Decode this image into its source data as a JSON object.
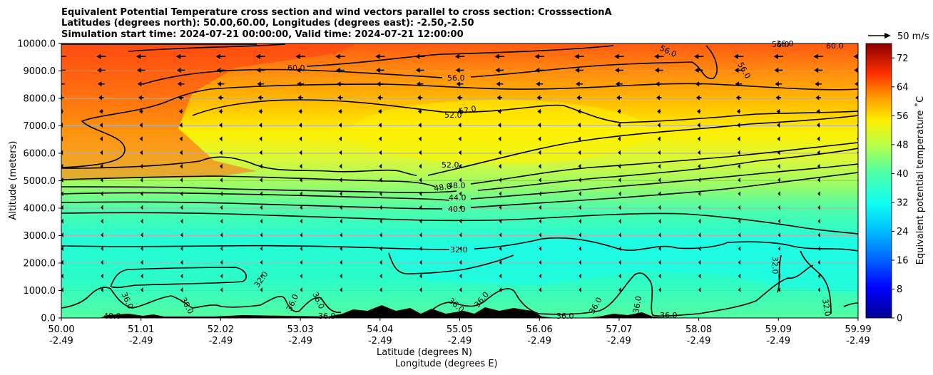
{
  "chart_data": {
    "type": "contour-cross-section",
    "title": [
      "Equivalent Potential Temperature cross section and wind vectors parallel to cross section: CrosssectionA",
      "Latitudes (degrees north): 50.00,60.00, Longitudes (degrees east): -2.50,-2.50",
      "Simulation start time: 2024-07-21 00:00:00, Valid time: 2024-07-21 12:00:00"
    ],
    "ylabel": "Altitude (meters)",
    "xlabel_lat": "Latitude (degrees N)",
    "xlabel_lon": "Longitude (degrees E)",
    "ylim": [
      0,
      10000
    ],
    "xlim": [
      50.0,
      59.99
    ],
    "y_ticks": [
      "0.0",
      "1000.0",
      "2000.0",
      "3000.0",
      "4000.0",
      "5000.0",
      "6000.0",
      "7000.0",
      "8000.0",
      "9000.0",
      "10000.0"
    ],
    "x_ticks": [
      {
        "lat": "50.00",
        "lon": "-2.49"
      },
      {
        "lat": "51.01",
        "lon": "-2.49"
      },
      {
        "lat": "52.02",
        "lon": "-2.49"
      },
      {
        "lat": "53.03",
        "lon": "-2.49"
      },
      {
        "lat": "54.04",
        "lon": "-2.49"
      },
      {
        "lat": "55.05",
        "lon": "-2.49"
      },
      {
        "lat": "56.06",
        "lon": "-2.49"
      },
      {
        "lat": "57.07",
        "lon": "-2.49"
      },
      {
        "lat": "58.08",
        "lon": "-2.49"
      },
      {
        "lat": "59.09",
        "lon": "-2.49"
      },
      {
        "lat": "59.99",
        "lon": "-2.49"
      }
    ],
    "grid": "horizontal",
    "colorbar": {
      "label": "Equivalent potential temperature ˚C",
      "ticks": [
        "0",
        "8",
        "16",
        "24",
        "32",
        "40",
        "48",
        "56",
        "64",
        "72"
      ],
      "range": [
        0,
        76
      ]
    },
    "quiver_key": "50 m/s",
    "contour_labels": [
      "60.0",
      "56.0",
      "56.0",
      "56.0",
      "60.0",
      "56.0",
      "52.0",
      "52.0",
      "52.0",
      "48.0",
      "48.0",
      "44.0",
      "40.0",
      "32.0",
      "32.0",
      "32.0",
      "32.0",
      "36.0",
      "36.0",
      "36.0",
      "36.0",
      "36.0",
      "36.0",
      "36.0",
      "36.0",
      "36.0",
      "36.0",
      "36.0",
      "36.0",
      "40.0"
    ],
    "wind_vector_rows_altitude_m": [
      9500,
      9000,
      8500,
      8000,
      7500,
      7000,
      6500,
      6000,
      5500,
      5000,
      4500,
      4000,
      3500,
      3000,
      2500,
      2000,
      1500,
      1000
    ],
    "wind_vector_speed_by_row_ms": [
      25,
      22,
      18,
      14,
      10,
      8,
      7,
      6,
      5,
      4,
      3,
      3,
      2,
      2,
      2,
      2,
      2,
      2
    ]
  }
}
